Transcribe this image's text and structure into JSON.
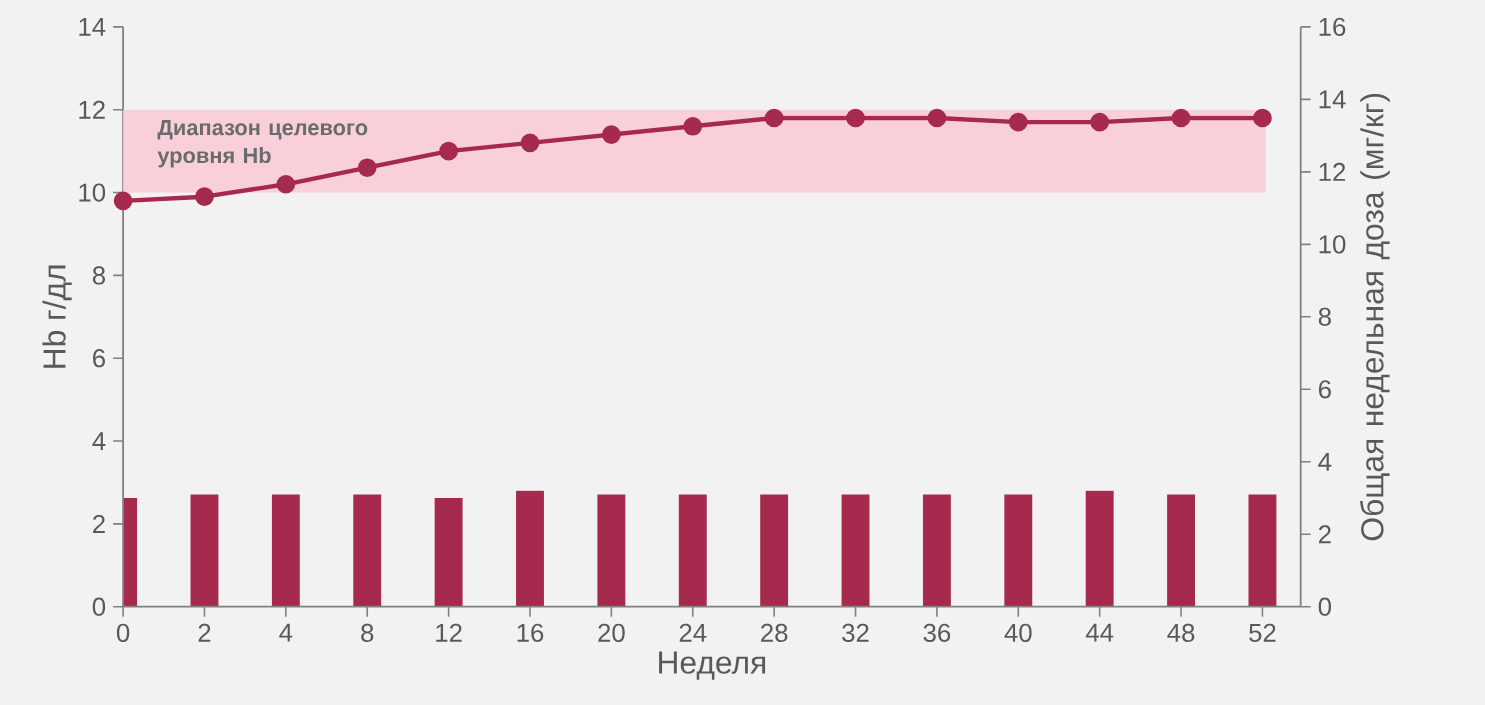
{
  "chart_data": {
    "type": "line",
    "xlabel": "Неделя",
    "ylabel": "Hb г/дл",
    "y2label": "Общая недельная доза (мг/кг)",
    "categories": [
      "0",
      "2",
      "4",
      "8",
      "12",
      "16",
      "20",
      "24",
      "28",
      "32",
      "36",
      "40",
      "44",
      "48",
      "52"
    ],
    "series": [
      {
        "type": "bar",
        "axis": "y2",
        "color": "#a52a4e",
        "values": [
          3.0,
          3.1,
          3.1,
          3.1,
          3.0,
          3.2,
          3.1,
          3.1,
          3.1,
          3.1,
          3.1,
          3.1,
          3.2,
          3.1,
          3.1
        ]
      },
      {
        "color": "#a52a4e",
        "values": [
          9.8,
          9.9,
          10.2,
          10.6,
          11.0,
          11.2,
          11.4,
          11.6,
          11.8,
          11.8,
          11.8,
          11.7,
          11.7,
          11.8,
          11.8
        ]
      }
    ],
    "ylim": [
      0,
      14
    ],
    "yticks": [
      0,
      2,
      4,
      6,
      8,
      10,
      12,
      14
    ],
    "y2lim": [
      0,
      16
    ],
    "y2ticks": [
      0,
      2,
      4,
      6,
      8,
      10,
      12,
      14,
      16
    ],
    "bands": [
      {
        "axis": "y",
        "from": 10,
        "to": 12,
        "label": "Диапазон целевого уровня Hb",
        "color": "#f9d0da"
      }
    ],
    "marker": "circle",
    "line_style": "solid",
    "grid": false,
    "legend": false
  }
}
